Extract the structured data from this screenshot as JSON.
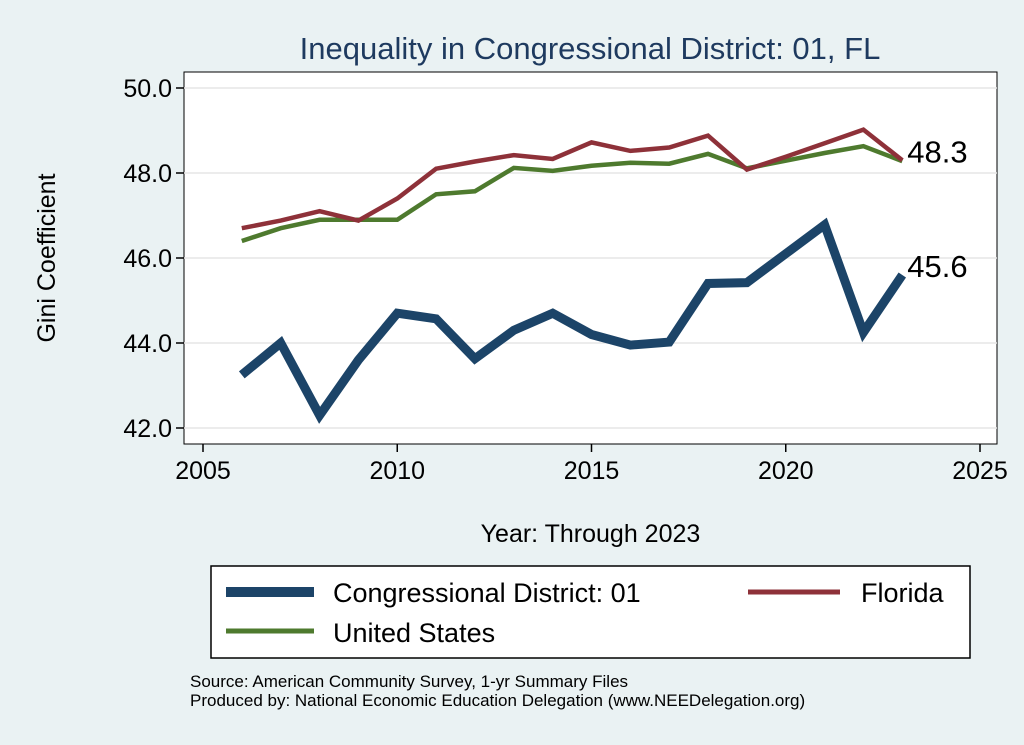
{
  "chart_data": {
    "type": "line",
    "title": "Inequality in Congressional District:  01, FL",
    "xlabel": "Year: Through 2023",
    "ylabel": "Gini Coefficient",
    "xlim": [
      2005,
      2025
    ],
    "ylim": [
      42.0,
      50.0
    ],
    "x_ticks": [
      2005,
      2010,
      2015,
      2020,
      2025
    ],
    "y_ticks": [
      "42.0",
      "44.0",
      "46.0",
      "48.0",
      "50.0"
    ],
    "grid": true,
    "legend_position": "bottom",
    "x": [
      2006,
      2007,
      2008,
      2009,
      2010,
      2011,
      2012,
      2013,
      2014,
      2015,
      2016,
      2017,
      2018,
      2019,
      2020,
      2021,
      2022,
      2023
    ],
    "series": [
      {
        "name": "Congressional District:  01",
        "color": "#1c4468",
        "width": "thick",
        "values": [
          43.25,
          44.0,
          42.3,
          43.6,
          44.7,
          44.57,
          43.63,
          44.3,
          44.7,
          44.2,
          43.95,
          44.02,
          45.4,
          45.42,
          46.1,
          46.78,
          44.25,
          45.6
        ],
        "end_label": "45.6"
      },
      {
        "name": "Florida",
        "color": "#8e3139",
        "width": "normal",
        "values": [
          46.7,
          46.88,
          47.1,
          46.88,
          47.4,
          48.1,
          48.27,
          48.42,
          48.33,
          48.72,
          48.52,
          48.6,
          48.88,
          48.08,
          48.38,
          48.7,
          49.02,
          48.3
        ],
        "end_label": "48.3"
      },
      {
        "name": "United States",
        "color": "#4e7a2e",
        "width": "normal",
        "values": [
          46.4,
          46.7,
          46.9,
          46.9,
          46.9,
          47.5,
          47.57,
          48.12,
          48.05,
          48.17,
          48.24,
          48.22,
          48.45,
          48.11,
          48.29,
          48.47,
          48.63,
          48.28
        ]
      }
    ]
  },
  "source": {
    "line1": "Source: American Community Survey, 1-yr Summary Files",
    "line2": "Produced by: National Economic Education Delegation (www.NEEDelegation.org)"
  }
}
